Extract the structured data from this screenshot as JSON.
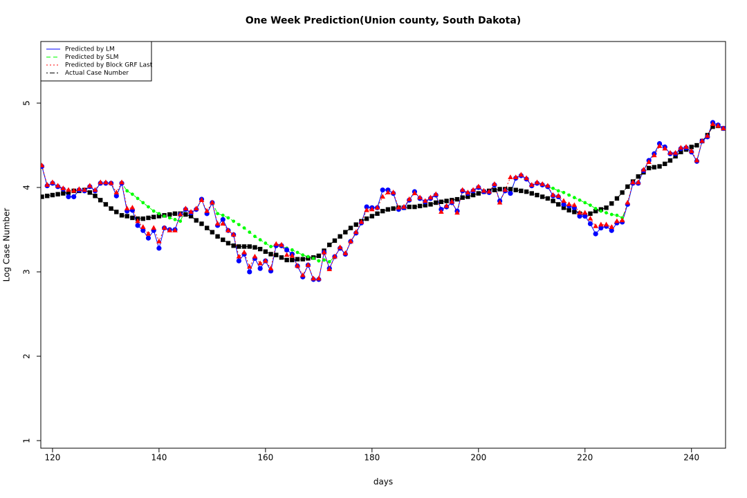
{
  "chart_data": {
    "type": "line",
    "title": "One Week Prediction(Union county, South Dakota)",
    "x_label": "days",
    "y_label": "Log Case Number",
    "xlim": [
      117.8,
      246.4
    ],
    "xticks": [
      120,
      140,
      160,
      180,
      200,
      220,
      240
    ],
    "ylim": [
      0.91,
      5.73
    ],
    "yticks": [
      1,
      2,
      3,
      4,
      5
    ],
    "legend_position": "top-left",
    "x": [
      118,
      119,
      120,
      121,
      122,
      123,
      124,
      125,
      126,
      127,
      128,
      129,
      130,
      131,
      132,
      133,
      134,
      135,
      136,
      137,
      138,
      139,
      140,
      141,
      142,
      143,
      144,
      145,
      146,
      147,
      148,
      149,
      150,
      151,
      152,
      153,
      154,
      155,
      156,
      157,
      158,
      159,
      160,
      161,
      162,
      163,
      164,
      165,
      166,
      167,
      168,
      169,
      170,
      171,
      172,
      173,
      174,
      175,
      176,
      177,
      178,
      179,
      180,
      181,
      182,
      183,
      184,
      185,
      186,
      187,
      188,
      189,
      190,
      191,
      192,
      193,
      194,
      195,
      196,
      197,
      198,
      199,
      200,
      201,
      202,
      203,
      204,
      205,
      206,
      207,
      208,
      209,
      210,
      211,
      212,
      213,
      214,
      215,
      216,
      217,
      218,
      219,
      220,
      221,
      222,
      223,
      224,
      225,
      226,
      227,
      228,
      229,
      230,
      231,
      232,
      233,
      234,
      235,
      236,
      237,
      238,
      239,
      240,
      241,
      242,
      243,
      244,
      245,
      246
    ],
    "series": [
      {
        "name": "Predicted by LM",
        "color": "#0000ff",
        "line_style": "solid",
        "marker": "circle",
        "values": [
          4.25,
          4.02,
          4.05,
          4.01,
          3.98,
          3.89,
          3.89,
          3.97,
          3.96,
          4.01,
          3.96,
          4.05,
          4.05,
          4.05,
          3.9,
          4.05,
          3.72,
          3.73,
          3.55,
          3.49,
          3.4,
          3.49,
          3.28,
          3.52,
          3.5,
          3.5,
          3.68,
          3.74,
          3.7,
          3.74,
          3.86,
          3.69,
          3.82,
          3.55,
          3.62,
          3.49,
          3.44,
          3.13,
          3.21,
          3.0,
          3.16,
          3.04,
          3.13,
          3.01,
          3.31,
          3.31,
          3.26,
          3.21,
          3.07,
          2.94,
          3.08,
          2.91,
          2.91,
          3.23,
          3.04,
          3.18,
          3.28,
          3.21,
          3.36,
          3.46,
          3.58,
          3.77,
          3.76,
          3.76,
          3.97,
          3.97,
          3.93,
          3.74,
          3.76,
          3.85,
          3.95,
          3.87,
          3.83,
          3.87,
          3.91,
          3.74,
          3.77,
          3.82,
          3.72,
          3.96,
          3.93,
          3.96,
          4.0,
          3.95,
          3.94,
          4.03,
          3.84,
          3.96,
          3.93,
          4.11,
          4.14,
          4.1,
          4.02,
          4.05,
          4.03,
          4.01,
          3.9,
          3.89,
          3.8,
          3.78,
          3.76,
          3.66,
          3.66,
          3.57,
          3.45,
          3.52,
          3.54,
          3.49,
          3.58,
          3.59,
          3.8,
          4.05,
          4.05,
          4.2,
          4.32,
          4.4,
          4.52,
          4.48,
          4.4,
          4.4,
          4.46,
          4.47,
          4.42,
          4.31,
          4.55,
          4.6,
          4.77,
          4.74,
          4.7
        ]
      },
      {
        "name": "Predicted by SLM",
        "color": "#00ff00",
        "line_style": "dashed",
        "marker": "dot",
        "values": [
          4.25,
          4.02,
          4.05,
          4.01,
          3.98,
          3.89,
          3.89,
          3.97,
          3.96,
          4.01,
          3.96,
          4.05,
          4.05,
          4.05,
          3.9,
          4.05,
          3.96,
          3.92,
          3.87,
          3.82,
          3.77,
          3.72,
          3.69,
          3.66,
          3.64,
          3.62,
          3.6,
          3.74,
          3.7,
          3.74,
          3.86,
          3.69,
          3.82,
          3.69,
          3.67,
          3.64,
          3.6,
          3.56,
          3.52,
          3.47,
          3.42,
          3.38,
          3.34,
          3.3,
          3.31,
          3.3,
          3.28,
          3.26,
          3.23,
          3.2,
          3.18,
          3.16,
          3.13,
          3.14,
          3.12,
          3.18,
          3.28,
          3.21,
          3.36,
          3.46,
          3.58,
          3.77,
          3.76,
          3.76,
          3.97,
          3.97,
          3.93,
          3.74,
          3.76,
          3.85,
          3.95,
          3.87,
          3.83,
          3.87,
          3.91,
          3.74,
          3.77,
          3.82,
          3.72,
          3.96,
          3.93,
          3.96,
          4.0,
          3.95,
          3.94,
          4.03,
          3.84,
          3.96,
          3.93,
          4.11,
          4.14,
          4.1,
          4.02,
          4.05,
          4.03,
          4.0,
          3.99,
          3.96,
          3.94,
          3.91,
          3.88,
          3.85,
          3.82,
          3.79,
          3.75,
          3.72,
          3.7,
          3.68,
          3.67,
          3.64,
          3.8,
          4.05,
          4.05,
          4.2,
          4.32,
          4.4,
          4.52,
          4.48,
          4.4,
          4.4,
          4.46,
          4.47,
          4.42,
          4.31,
          4.55,
          4.6,
          4.77,
          4.74,
          4.7
        ]
      },
      {
        "name": "Predicted by Block GRF Last",
        "color": "#ff0000",
        "line_style": "dotted",
        "marker": "triangle",
        "values": [
          4.26,
          4.03,
          4.06,
          4.02,
          3.99,
          3.97,
          3.96,
          3.98,
          3.97,
          4.02,
          3.97,
          4.06,
          4.06,
          4.05,
          3.94,
          4.06,
          3.75,
          3.76,
          3.6,
          3.53,
          3.45,
          3.52,
          3.36,
          3.52,
          3.49,
          3.49,
          3.68,
          3.75,
          3.71,
          3.75,
          3.85,
          3.72,
          3.82,
          3.57,
          3.57,
          3.49,
          3.44,
          3.18,
          3.23,
          3.06,
          3.18,
          3.1,
          3.13,
          3.04,
          3.33,
          3.32,
          3.2,
          3.19,
          3.07,
          2.96,
          3.08,
          2.92,
          2.92,
          3.23,
          3.03,
          3.18,
          3.29,
          3.22,
          3.36,
          3.47,
          3.59,
          3.73,
          3.74,
          3.76,
          3.89,
          3.94,
          3.94,
          3.76,
          3.77,
          3.86,
          3.93,
          3.88,
          3.84,
          3.88,
          3.92,
          3.71,
          3.78,
          3.83,
          3.7,
          3.97,
          3.94,
          3.97,
          4.01,
          3.96,
          3.95,
          4.04,
          3.82,
          3.97,
          4.12,
          4.12,
          4.15,
          4.11,
          4.03,
          4.06,
          4.04,
          4.02,
          3.91,
          3.9,
          3.84,
          3.8,
          3.79,
          3.7,
          3.7,
          3.63,
          3.54,
          3.56,
          3.56,
          3.53,
          3.6,
          3.61,
          3.82,
          4.06,
          4.06,
          4.21,
          4.3,
          4.38,
          4.49,
          4.46,
          4.41,
          4.41,
          4.47,
          4.48,
          4.43,
          4.32,
          4.55,
          4.61,
          4.75,
          4.73,
          4.7
        ]
      },
      {
        "name": "Actual Case Number",
        "color": "#000000",
        "line_style": "dotdash",
        "marker": "square",
        "values": [
          3.89,
          3.9,
          3.91,
          3.92,
          3.93,
          3.94,
          3.96,
          3.96,
          3.97,
          3.94,
          3.9,
          3.85,
          3.8,
          3.75,
          3.71,
          3.67,
          3.66,
          3.64,
          3.63,
          3.63,
          3.64,
          3.65,
          3.66,
          3.67,
          3.68,
          3.69,
          3.69,
          3.68,
          3.66,
          3.61,
          3.57,
          3.52,
          3.47,
          3.42,
          3.38,
          3.34,
          3.31,
          3.3,
          3.3,
          3.3,
          3.29,
          3.27,
          3.24,
          3.21,
          3.2,
          3.17,
          3.14,
          3.14,
          3.15,
          3.15,
          3.16,
          3.17,
          3.19,
          3.25,
          3.32,
          3.37,
          3.42,
          3.47,
          3.52,
          3.56,
          3.6,
          3.63,
          3.66,
          3.69,
          3.72,
          3.74,
          3.75,
          3.76,
          3.76,
          3.77,
          3.77,
          3.78,
          3.79,
          3.8,
          3.82,
          3.83,
          3.84,
          3.85,
          3.86,
          3.88,
          3.89,
          3.91,
          3.93,
          3.95,
          3.96,
          3.97,
          3.98,
          3.98,
          3.98,
          3.97,
          3.96,
          3.95,
          3.93,
          3.91,
          3.89,
          3.87,
          3.84,
          3.8,
          3.76,
          3.73,
          3.71,
          3.69,
          3.67,
          3.69,
          3.72,
          3.74,
          3.76,
          3.81,
          3.87,
          3.94,
          4.01,
          4.07,
          4.13,
          4.18,
          4.23,
          4.24,
          4.25,
          4.28,
          4.32,
          4.37,
          4.42,
          4.45,
          4.48,
          4.5,
          4.55,
          4.62,
          4.72,
          4.73,
          4.7
        ]
      }
    ]
  }
}
